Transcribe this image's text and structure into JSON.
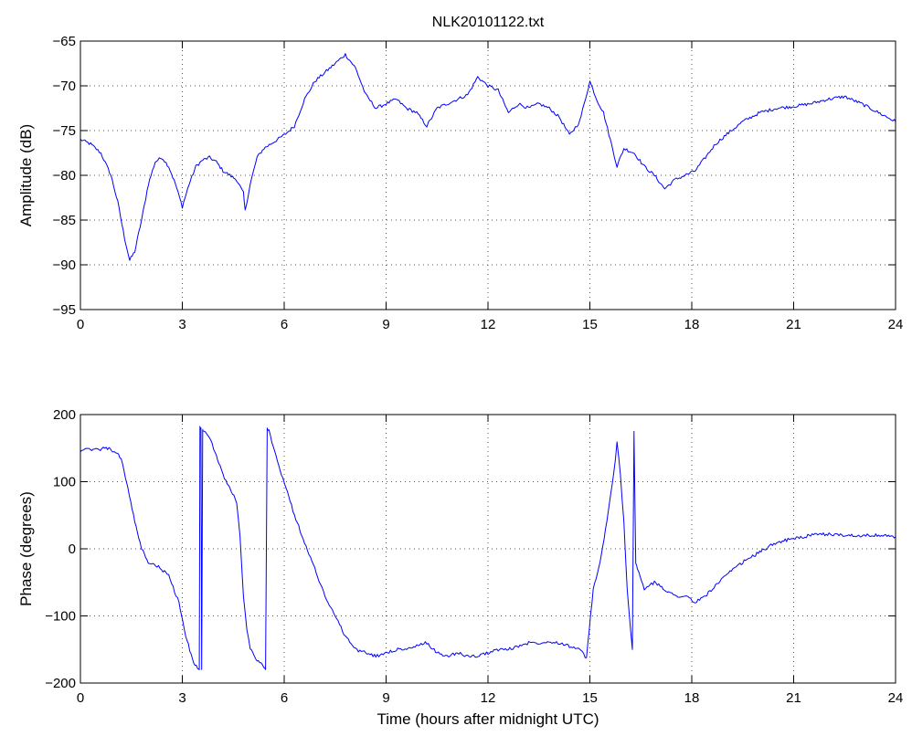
{
  "colors": {
    "series": "#0000ff",
    "axes": "#000000",
    "grid": "#555555"
  },
  "chart_data": [
    {
      "type": "line",
      "title": "NLK20101122.txt",
      "xlabel": "",
      "ylabel": "Amplitude (dB)",
      "xlim": [
        0,
        24
      ],
      "ylim": [
        -95,
        -65
      ],
      "xticks": [
        0,
        3,
        6,
        9,
        12,
        15,
        18,
        21,
        24
      ],
      "yticks": [
        -95,
        -90,
        -85,
        -80,
        -75,
        -70,
        -65
      ],
      "grid": true,
      "series": [
        {
          "x": [
            0,
            0.3,
            0.6,
            0.9,
            1.1,
            1.3,
            1.45,
            1.6,
            1.8,
            2.0,
            2.2,
            2.4,
            2.6,
            2.8,
            3.0,
            3.2,
            3.4,
            3.6,
            3.8,
            4.0,
            4.2,
            4.4,
            4.6,
            4.8,
            4.85,
            5.0,
            5.2,
            5.4,
            5.6,
            5.8,
            6.0,
            6.3,
            6.6,
            6.9,
            7.2,
            7.5,
            7.8,
            8.1,
            8.4,
            8.7,
            9.0,
            9.3,
            9.6,
            9.9,
            10.2,
            10.5,
            10.8,
            11.1,
            11.4,
            11.7,
            12.0,
            12.3,
            12.6,
            12.9,
            13.2,
            13.5,
            13.8,
            14.1,
            14.4,
            14.7,
            15.0,
            15.2,
            15.4,
            15.6,
            15.8,
            16.0,
            16.3,
            16.6,
            16.9,
            17.2,
            17.5,
            17.8,
            18.1,
            18.4,
            18.7,
            19.0,
            19.5,
            20.0,
            20.5,
            21.0,
            21.5,
            22.0,
            22.5,
            23.0,
            23.5,
            24.0
          ],
          "y": [
            -76,
            -76.5,
            -77.5,
            -80,
            -83,
            -87,
            -89.5,
            -88.5,
            -85,
            -81,
            -78.5,
            -78,
            -79,
            -81,
            -83.5,
            -81,
            -79,
            -78.3,
            -78,
            -78.5,
            -79.5,
            -80,
            -80.5,
            -82,
            -84,
            -81,
            -78,
            -77,
            -76.5,
            -76,
            -75.5,
            -74.5,
            -71.5,
            -69.5,
            -68.5,
            -67.5,
            -66.5,
            -68,
            -71,
            -72.5,
            -72,
            -71.5,
            -72.5,
            -73,
            -74.5,
            -72.5,
            -72,
            -71.5,
            -71,
            -69,
            -70,
            -70.5,
            -73,
            -72,
            -72.5,
            -72,
            -72.5,
            -73.5,
            -75.5,
            -74,
            -69.5,
            -71.5,
            -73,
            -76,
            -79,
            -77,
            -77.5,
            -79,
            -80,
            -81.5,
            -80.5,
            -80,
            -79.5,
            -78,
            -76.5,
            -75.5,
            -74,
            -73,
            -72.5,
            -72.3,
            -72,
            -71.5,
            -71.2,
            -72,
            -73,
            -74
          ]
        }
      ]
    },
    {
      "type": "line",
      "title": "",
      "xlabel": "Time (hours after midnight UTC)",
      "ylabel": "Phase (degrees)",
      "xlim": [
        0,
        24
      ],
      "ylim": [
        -200,
        200
      ],
      "xticks": [
        0,
        3,
        6,
        9,
        12,
        15,
        18,
        21,
        24
      ],
      "yticks": [
        -200,
        -100,
        0,
        100,
        200
      ],
      "grid": true,
      "series": [
        {
          "x": [
            0,
            0.5,
            0.8,
            1.0,
            1.2,
            1.4,
            1.6,
            1.8,
            2.0,
            2.3,
            2.6,
            2.9,
            3.1,
            3.3,
            3.45,
            3.5,
            3.52,
            3.55,
            3.57,
            3.6,
            3.8,
            4.0,
            4.2,
            4.4,
            4.6,
            4.7,
            4.8,
            4.9,
            5.0,
            5.2,
            5.4,
            5.45,
            5.5,
            5.55,
            5.8,
            6.0,
            6.3,
            6.6,
            6.9,
            7.2,
            7.5,
            7.8,
            8.1,
            8.4,
            8.7,
            9.0,
            9.3,
            9.6,
            9.9,
            10.2,
            10.5,
            10.8,
            11.1,
            11.4,
            11.7,
            12.0,
            12.3,
            12.6,
            12.9,
            13.2,
            13.5,
            13.8,
            14.1,
            14.4,
            14.7,
            14.9,
            15.1,
            15.3,
            15.5,
            15.7,
            15.8,
            15.9,
            16.0,
            16.1,
            16.2,
            16.25,
            16.3,
            16.35,
            16.4,
            16.6,
            16.9,
            17.2,
            17.5,
            17.8,
            18.1,
            18.4,
            18.7,
            19.0,
            19.5,
            20.0,
            20.5,
            21.0,
            21.5,
            22.0,
            22.5,
            23.0,
            23.5,
            24.0
          ],
          "y": [
            147,
            148,
            150,
            145,
            135,
            90,
            40,
            0,
            -20,
            -27,
            -40,
            -80,
            -130,
            -165,
            -178,
            -180,
            180,
            180,
            -180,
            178,
            165,
            140,
            110,
            90,
            70,
            20,
            -70,
            -120,
            -150,
            -165,
            -175,
            -180,
            180,
            175,
            130,
            100,
            50,
            10,
            -30,
            -70,
            -100,
            -130,
            -150,
            -155,
            -160,
            -155,
            -150,
            -150,
            -145,
            -140,
            -155,
            -160,
            -155,
            -160,
            -160,
            -155,
            -150,
            -150,
            -145,
            -140,
            -140,
            -138,
            -140,
            -145,
            -150,
            -163,
            -60,
            -20,
            40,
            110,
            160,
            110,
            40,
            -60,
            -120,
            -150,
            175,
            -20,
            -30,
            -60,
            -50,
            -60,
            -70,
            -70,
            -80,
            -70,
            -55,
            -40,
            -20,
            -5,
            10,
            15,
            20,
            22,
            20,
            20,
            20,
            18
          ]
        }
      ]
    }
  ]
}
